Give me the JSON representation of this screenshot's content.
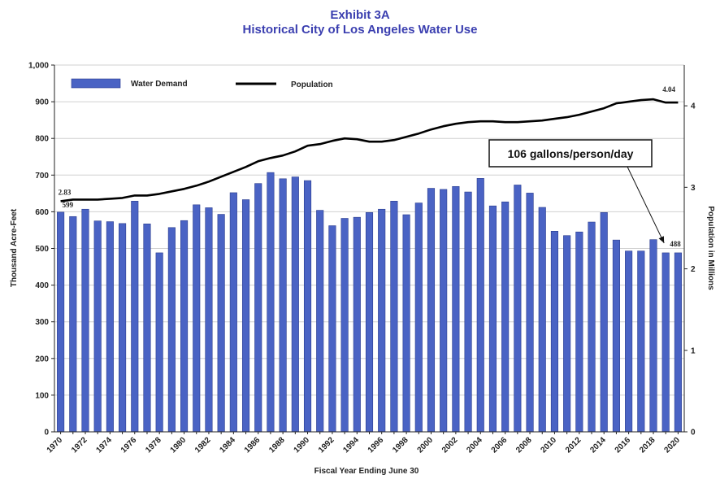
{
  "title": "Exhibit 3A",
  "subtitle": "Historical City of Los Angeles Water Use",
  "chart_data": {
    "type": "bar",
    "title": "Exhibit 3A",
    "subtitle": "Historical City of Los Angeles Water Use",
    "xlabel": "Fiscal Year Ending June 30",
    "ylabel": "Thousand Acre-Feet",
    "y2label": "Population in Millions",
    "ylim": [
      0,
      1000
    ],
    "y2lim": [
      0,
      4.5
    ],
    "yticks": [
      "0",
      "100",
      "200",
      "300",
      "400",
      "500",
      "600",
      "700",
      "800",
      "900",
      "1,000"
    ],
    "y2ticks": [
      "0",
      "1",
      "2",
      "3",
      "4"
    ],
    "x_tick_labels": [
      "1970",
      "1972",
      "1974",
      "1976",
      "1978",
      "1980",
      "1982",
      "1984",
      "1986",
      "1988",
      "1990",
      "1992",
      "1994",
      "1996",
      "1998",
      "2000",
      "2002",
      "2004",
      "2006",
      "2008",
      "2010",
      "2012",
      "2014",
      "2016",
      "2018",
      "2020"
    ],
    "legend_placement": "top-left",
    "grid": "horizontal",
    "categories": [
      1970,
      1971,
      1972,
      1973,
      1974,
      1975,
      1976,
      1977,
      1978,
      1979,
      1980,
      1981,
      1982,
      1983,
      1984,
      1985,
      1986,
      1987,
      1988,
      1989,
      1990,
      1991,
      1992,
      1993,
      1994,
      1995,
      1996,
      1997,
      1998,
      1999,
      2000,
      2001,
      2002,
      2003,
      2004,
      2005,
      2006,
      2007,
      2008,
      2009,
      2010,
      2011,
      2012,
      2013,
      2014,
      2015,
      2016,
      2017,
      2018,
      2019,
      2020
    ],
    "series": [
      {
        "name": "Water Demand",
        "type": "bar",
        "axis": "left",
        "color": "#4a63c4",
        "values": [
          599,
          587,
          607,
          575,
          573,
          568,
          629,
          567,
          488,
          557,
          576,
          619,
          611,
          593,
          652,
          633,
          677,
          707,
          690,
          695,
          685,
          604,
          562,
          582,
          585,
          598,
          607,
          629,
          592,
          624,
          664,
          661,
          669,
          654,
          691,
          616,
          627,
          673,
          651,
          612,
          547,
          535,
          545,
          572,
          598,
          523,
          493,
          493,
          524,
          488,
          488
        ]
      },
      {
        "name": "Population",
        "type": "line",
        "axis": "right",
        "color": "#000000",
        "values": [
          2.83,
          2.85,
          2.85,
          2.85,
          2.86,
          2.87,
          2.9,
          2.9,
          2.92,
          2.95,
          2.98,
          3.02,
          3.07,
          3.13,
          3.19,
          3.25,
          3.32,
          3.36,
          3.39,
          3.44,
          3.51,
          3.53,
          3.57,
          3.6,
          3.59,
          3.56,
          3.56,
          3.58,
          3.62,
          3.66,
          3.71,
          3.75,
          3.78,
          3.8,
          3.81,
          3.81,
          3.8,
          3.8,
          3.81,
          3.82,
          3.84,
          3.86,
          3.89,
          3.93,
          3.97,
          4.03,
          4.05,
          4.07,
          4.08,
          4.04,
          4.04
        ]
      }
    ],
    "annotations": [
      {
        "text": "2.83",
        "series": "Population",
        "x": 1970,
        "value": 2.83
      },
      {
        "text": "599",
        "series": "Water Demand",
        "x": 1970,
        "value": 599
      },
      {
        "text": "4.04",
        "series": "Population",
        "x": 2019,
        "value": 4.04
      },
      {
        "text": "488",
        "series": "Water Demand",
        "x": 2019,
        "value": 488
      },
      {
        "text": "106 gallons/person/day",
        "series": "Water Demand",
        "x": 2019,
        "value": 488
      }
    ]
  }
}
